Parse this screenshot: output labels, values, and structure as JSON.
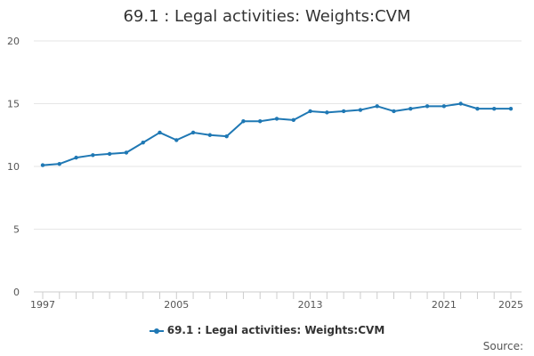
{
  "colors": {
    "series": "#1f78b4",
    "grid": "#e6e6e6",
    "axis": "#cccccc",
    "text": "#333333"
  },
  "source_label": "Source:",
  "chart_data": {
    "type": "line",
    "title": "69.1 : Legal activities: Weights:CVM",
    "xlabel": "",
    "ylabel": "",
    "xlim": [
      1997,
      2025
    ],
    "ylim": [
      0,
      20
    ],
    "x_ticks": [
      1997,
      1998,
      1999,
      2000,
      2001,
      2002,
      2003,
      2004,
      2005,
      2006,
      2007,
      2008,
      2009,
      2010,
      2011,
      2012,
      2013,
      2014,
      2015,
      2016,
      2017,
      2018,
      2019,
      2020,
      2021,
      2022,
      2023,
      2024,
      2025
    ],
    "x_tick_labels": [
      "1997",
      "2005",
      "2013",
      "2021",
      "2025"
    ],
    "y_ticks": [
      0,
      5,
      10,
      15,
      20
    ],
    "grid": true,
    "legend_position": "bottom-center",
    "series": [
      {
        "name": "69.1 : Legal activities: Weights:CVM",
        "x": [
          1997,
          1998,
          1999,
          2000,
          2001,
          2002,
          2003,
          2004,
          2005,
          2006,
          2007,
          2008,
          2009,
          2010,
          2011,
          2012,
          2013,
          2014,
          2015,
          2016,
          2017,
          2018,
          2019,
          2020,
          2021,
          2022,
          2023,
          2024,
          2025
        ],
        "values": [
          10.1,
          10.2,
          10.7,
          10.9,
          11.0,
          11.1,
          11.9,
          12.7,
          12.1,
          12.7,
          12.5,
          12.4,
          13.6,
          13.6,
          13.8,
          13.7,
          14.4,
          14.3,
          14.4,
          14.5,
          14.8,
          14.4,
          14.6,
          14.8,
          14.8,
          15.0,
          14.6,
          14.6,
          14.6
        ]
      }
    ]
  }
}
